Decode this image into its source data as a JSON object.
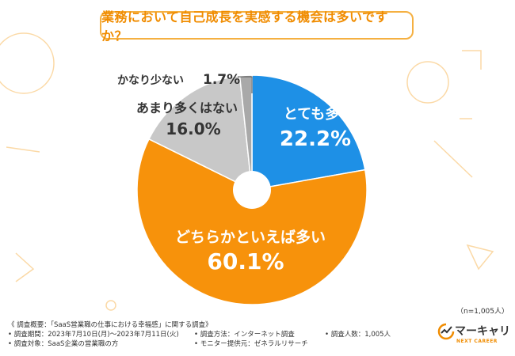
{
  "title": "業務において自己成長を実感する機会は多いですか？",
  "n_note": "（n=1,005人）",
  "colors": {
    "accent": "#f08c00",
    "slice_1": "#1e90e6",
    "slice_2": "#f7920b",
    "slice_3": "#c8c8c8",
    "slice_4": "#a9a9a9"
  },
  "chart_data": {
    "type": "pie",
    "title": "業務において自己成長を実感する機会は多いですか？",
    "categories": [
      "とても多い",
      "どちらかといえば多い",
      "あまり多くはない",
      "かなり少ない"
    ],
    "values": [
      22.2,
      60.1,
      16.0,
      1.7
    ],
    "value_labels": [
      "22.2%",
      "60.1%",
      "16.0%",
      "1.7%"
    ],
    "donut": true
  },
  "footer": {
    "survey_overview": "《 調査概要：「SaaS営業職の仕事における幸福感」に関する調査》",
    "period": "• 調査期間：2023年7月10日(月)〜2023年7月11日(火)",
    "method": "• 調査方法：インターネット調査",
    "count": "• 調査人数：1,005人",
    "target": "• 調査対象：SaaS企業の営業職の方",
    "provider": "• モニター提供元：ゼネラルリサーチ"
  },
  "logo": {
    "name": "マーキャリ",
    "sub": "NEXT CAREER"
  }
}
